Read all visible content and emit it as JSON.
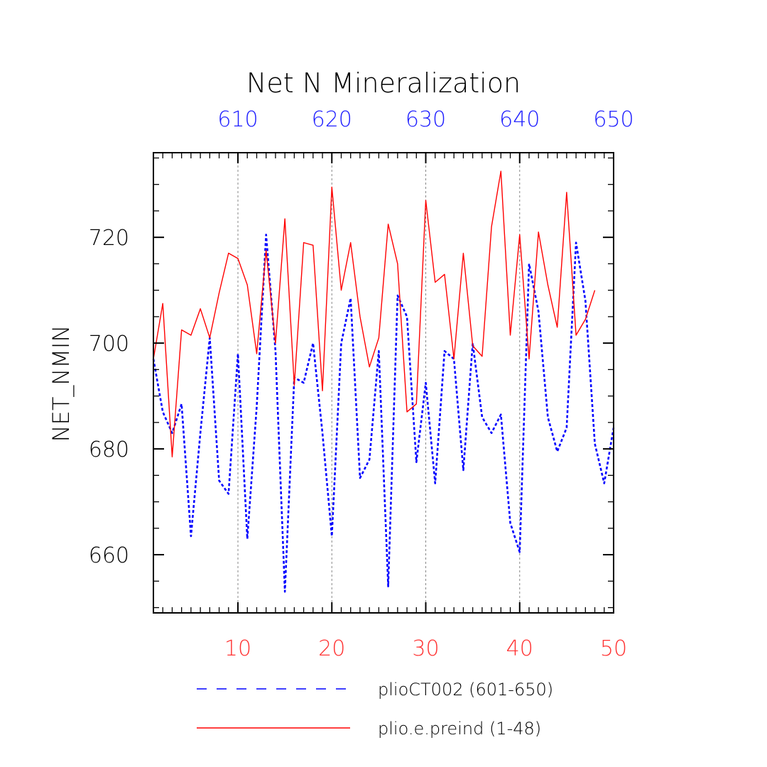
{
  "chart_data": {
    "type": "line",
    "title": "Net N Mineralization",
    "ylabel": "NET_NMIN",
    "xlabel": "",
    "ylim": [
      649,
      736
    ],
    "yticks": [
      660,
      680,
      700,
      720
    ],
    "grid": "vertical dotted lines at bottom-axis ticks 10, 20, 30, 40",
    "bottom_axis": {
      "range": [
        1,
        50
      ],
      "ticks": [
        10,
        20,
        30,
        40,
        50
      ],
      "tick_labels": [
        "10",
        "20",
        "30",
        "40",
        "50"
      ],
      "color": "#ff3333"
    },
    "top_axis": {
      "range": [
        601,
        650
      ],
      "ticks": [
        610,
        620,
        630,
        640,
        650
      ],
      "tick_labels": [
        "610",
        "620",
        "630",
        "640",
        "650"
      ],
      "color": "#2020ff"
    },
    "series": [
      {
        "name": "plioCT002 (601-650)",
        "color": "#0000ff",
        "style": "dotted",
        "axis": "top",
        "x": [
          601,
          602,
          603,
          604,
          605,
          606,
          607,
          608,
          609,
          610,
          611,
          612,
          613,
          614,
          615,
          616,
          617,
          618,
          619,
          620,
          621,
          622,
          623,
          624,
          625,
          626,
          627,
          628,
          629,
          630,
          631,
          632,
          633,
          634,
          635,
          636,
          637,
          638,
          639,
          640,
          641,
          642,
          643,
          644,
          645,
          646,
          647,
          648,
          649,
          650
        ],
        "values": [
          697,
          687,
          683,
          688.5,
          663.5,
          683,
          701,
          674,
          671.5,
          698,
          663,
          688,
          720.5,
          698.5,
          653,
          693.5,
          692.5,
          700,
          683,
          663.5,
          700,
          708.5,
          674.5,
          678,
          698.5,
          654,
          709,
          705,
          677.5,
          692.5,
          673.5,
          698.5,
          697,
          676,
          700,
          686,
          683,
          686.5,
          666,
          660.5,
          715,
          706,
          686,
          679.5,
          684,
          719,
          708,
          681,
          673.5,
          684
        ]
      },
      {
        "name": "plio.e.preind (1-48)",
        "color": "#ff0000",
        "style": "solid",
        "axis": "bottom",
        "x": [
          1,
          2,
          3,
          4,
          5,
          6,
          7,
          8,
          9,
          10,
          11,
          12,
          13,
          14,
          15,
          16,
          17,
          18,
          19,
          20,
          21,
          22,
          23,
          24,
          25,
          26,
          27,
          28,
          29,
          30,
          31,
          32,
          33,
          34,
          35,
          36,
          37,
          38,
          39,
          40,
          41,
          42,
          43,
          44,
          45,
          46,
          47,
          48
        ],
        "values": [
          697,
          707.5,
          678.5,
          702.5,
          701.5,
          706.5,
          701,
          709.5,
          717,
          716,
          711,
          698,
          717.5,
          700,
          723.5,
          692,
          719,
          718.5,
          691,
          729.5,
          710,
          719,
          705,
          695.5,
          701,
          722.5,
          715,
          687,
          688.5,
          727,
          711.5,
          713,
          697,
          717,
          699.5,
          697.5,
          722,
          732.5,
          701.5,
          720.5,
          697,
          721,
          711,
          703,
          728.5,
          701.5,
          704.5,
          710
        ]
      }
    ],
    "legend_position": "bottom"
  }
}
